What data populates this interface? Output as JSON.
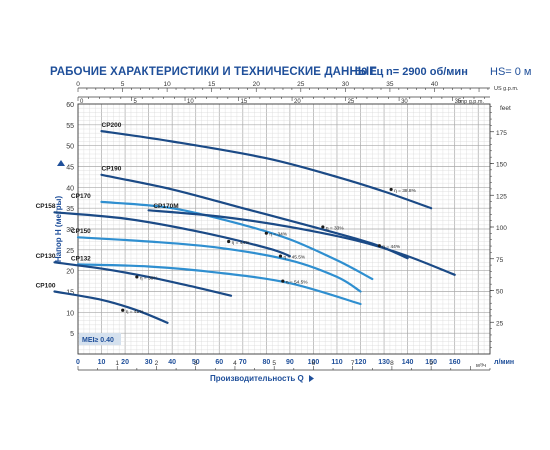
{
  "header": {
    "title": "РАБОЧИЕ ХАРАКТЕРИСТИКИ И ТЕХНИЧЕСКИЕ ДАННЫЕ",
    "frequency": "50 Гц",
    "speed": "n= 2900 об/мин",
    "hs": "HS= 0 м"
  },
  "colors": {
    "dark": "#1b4a86",
    "light": "#2f8fd0",
    "grid_minor": "#d9d9d9",
    "grid_major": "#a8a8a8",
    "axis": "#3c3c3c",
    "title": "#1f4f9a",
    "mei_bg": "#d5e1ee"
  },
  "chart_data": {
    "type": "line",
    "title": "",
    "xlabel": "Производительность Q",
    "ylabel": "Напор H (метры)",
    "xlim": [
      0,
      175
    ],
    "ylim": [
      0,
      60
    ],
    "x_ticks": [
      0,
      10,
      20,
      30,
      40,
      50,
      60,
      70,
      80,
      90,
      100,
      110,
      120,
      130,
      140,
      150,
      160
    ],
    "x_unit": "л/мин",
    "y_ticks": [
      5,
      10,
      15,
      20,
      25,
      30,
      35,
      40,
      45,
      50,
      55,
      60
    ],
    "m3h_ticks": [
      1,
      2,
      3,
      4,
      5,
      6,
      7,
      8,
      9
    ],
    "m3h_unit": "м³/ч",
    "usgpm_ticks": [
      0,
      5,
      10,
      15,
      20,
      25,
      30,
      35,
      40
    ],
    "usgpm_unit": "US g.p.m.",
    "impgpm_ticks": [
      0,
      5,
      10,
      15,
      20,
      25,
      30,
      35
    ],
    "impgpm_unit": "Imp g.p.m.",
    "feet_ticks": [
      25,
      50,
      75,
      100,
      125,
      150,
      175
    ],
    "feet_unit": "feet",
    "mei_badge": "MEI≥ 0.40",
    "series": [
      {
        "name": "CP200",
        "color": "dark",
        "x": [
          10,
          40,
          80,
          110,
          130,
          150
        ],
        "y": [
          53.5,
          51,
          47,
          42.5,
          39,
          35
        ],
        "label_x": 10,
        "label_y": 54.5,
        "eff": "η = 38.8%",
        "eff_x": 133,
        "eff_y": 39.5
      },
      {
        "name": "CP190",
        "color": "dark",
        "x": [
          10,
          40,
          70,
          100,
          125,
          140
        ],
        "y": [
          43,
          39.5,
          35,
          30.5,
          26.5,
          23
        ],
        "label_x": 10,
        "label_y": 44,
        "eff": "η = 33%",
        "eff_x": 104,
        "eff_y": 30.5
      },
      {
        "name": "CP170",
        "color": "light",
        "x": [
          10,
          40,
          70,
          90,
          110,
          125
        ],
        "y": [
          36.5,
          35,
          31,
          27.5,
          22.5,
          18
        ],
        "label_x": -3,
        "label_y": 37.5,
        "eff": "η = 34%",
        "eff_x": 80,
        "eff_y": 29
      },
      {
        "name": "CP170M",
        "color": "dark",
        "x": [
          30,
          60,
          90,
          120,
          140,
          160
        ],
        "y": [
          34.5,
          33,
          30.5,
          27,
          23.5,
          19
        ],
        "label_x": 32,
        "label_y": 35,
        "eff": "η = 44%",
        "eff_x": 128,
        "eff_y": 26
      },
      {
        "name": "CP158",
        "color": "dark",
        "x": [
          -10,
          20,
          50,
          80,
          90
        ],
        "y": [
          34,
          32.5,
          29.5,
          25.5,
          23.5
        ],
        "label_x": -18,
        "label_y": 35,
        "eff": "η = 44%",
        "eff_x": 64,
        "eff_y": 27
      },
      {
        "name": "CP150",
        "color": "light",
        "x": [
          0,
          30,
          60,
          90,
          110,
          120
        ],
        "y": [
          28,
          27,
          25.5,
          22.5,
          18.5,
          15
        ],
        "label_x": -3,
        "label_y": 29,
        "eff": "η = 45.5%",
        "eff_x": 86,
        "eff_y": 23.5
      },
      {
        "name": "CP132",
        "color": "light",
        "x": [
          0,
          30,
          60,
          90,
          120
        ],
        "y": [
          21.5,
          21,
          19.5,
          17,
          12
        ],
        "label_x": -3,
        "label_y": 22.5,
        "eff": "η = 54.5%",
        "eff_x": 87,
        "eff_y": 17.5
      },
      {
        "name": "CP130",
        "color": "dark",
        "x": [
          -10,
          10,
          30,
          50,
          65
        ],
        "y": [
          22,
          20.5,
          18.5,
          16,
          14
        ],
        "label_x": -18,
        "label_y": 23,
        "eff": "η = 38%",
        "eff_x": 25,
        "eff_y": 18.5
      },
      {
        "name": "CP100",
        "color": "dark",
        "x": [
          -10,
          10,
          25,
          38
        ],
        "y": [
          15,
          13,
          10.5,
          7.5
        ],
        "label_x": -18,
        "label_y": 16,
        "eff": "η = 41%",
        "eff_x": 19,
        "eff_y": 10.5
      }
    ]
  }
}
